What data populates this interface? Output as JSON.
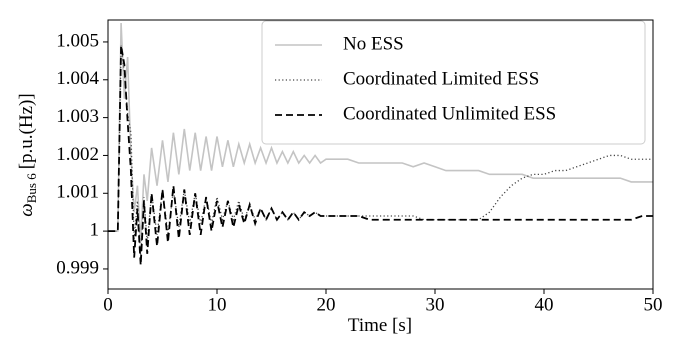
{
  "chart_data": {
    "type": "line",
    "x_label": "Time [s]",
    "y_label_symbol": "ω",
    "y_label_subscript": "Bus 6",
    "y_label_unit": "[p.u.(Hz)]",
    "legend": "upper right",
    "xlim": [
      0,
      50
    ],
    "xticks": [
      0,
      10,
      20,
      30,
      40,
      50
    ],
    "ylim": [
      0.99847,
      1.00558
    ],
    "yticks": [
      0.999,
      1,
      1.001,
      1.002,
      1.003,
      1.004,
      1.005
    ],
    "x": [
      0,
      0.9,
      1.2,
      1.5,
      1.8,
      2.1,
      2.4,
      2.7,
      3,
      3.3,
      3.6,
      4,
      4.5,
      5,
      5.5,
      6,
      6.5,
      7,
      7.5,
      8,
      8.5,
      9,
      9.5,
      10,
      10.5,
      11,
      11.5,
      12,
      12.5,
      13,
      13.5,
      14,
      14.5,
      15,
      15.5,
      16,
      16.5,
      17,
      17.5,
      18,
      18.5,
      19,
      19.5,
      20,
      21,
      22,
      23,
      24,
      25,
      26,
      27,
      28,
      29,
      30,
      31,
      32,
      33,
      34,
      35,
      36,
      37,
      38,
      39,
      40,
      41,
      42,
      43,
      44,
      45,
      46,
      47,
      48,
      49,
      50
    ],
    "series": [
      {
        "name": "No ESS",
        "color": "#c4c4c4",
        "dash": "solid",
        "values": [
          1,
          1,
          1.0055,
          1.0035,
          1.0046,
          1.002,
          1.0005,
          1.0012,
          0.9997,
          1.0015,
          1.0008,
          1.0022,
          1.0012,
          1.0024,
          1.0013,
          1.0026,
          1.0015,
          1.0027,
          1.0016,
          1.0026,
          1.0016,
          1.0025,
          1.0016,
          1.0025,
          1.0017,
          1.0024,
          1.0017,
          1.0023,
          1.0018,
          1.0023,
          1.0018,
          1.0022,
          1.0018,
          1.0022,
          1.0018,
          1.0021,
          1.0018,
          1.0021,
          1.0018,
          1.002,
          1.0018,
          1.002,
          1.0018,
          1.0019,
          1.0019,
          1.0019,
          1.0018,
          1.0018,
          1.0018,
          1.0018,
          1.0018,
          1.0017,
          1.0018,
          1.0017,
          1.0016,
          1.0016,
          1.0016,
          1.0016,
          1.0015,
          1.0015,
          1.0015,
          1.0015,
          1.0014,
          1.0014,
          1.0014,
          1.0014,
          1.0014,
          1.0014,
          1.0014,
          1.0014,
          1.0014,
          1.0013,
          1.0013,
          1.0013
        ]
      },
      {
        "name": "Coordinated Limited ESS",
        "color": "#444444",
        "dash": "dotted",
        "values": [
          1,
          1,
          1.0049,
          1.0042,
          1.0031,
          1.0026,
          0.9998,
          1.0008,
          0.9993,
          1.0009,
          0.9997,
          1.001,
          0.9999,
          1.0011,
          0.9999,
          1.0011,
          1.0001,
          1.0011,
          1.0002,
          1.001,
          1.0002,
          1.0009,
          1.0002,
          1.0009,
          1.0003,
          1.0008,
          1.0003,
          1.0008,
          1.0003,
          1.0007,
          1.0003,
          1.0006,
          1.0003,
          1.0006,
          1.0003,
          1.0005,
          1.0003,
          1.0005,
          1.0003,
          1.0005,
          1.0004,
          1.0005,
          1.0004,
          1.0004,
          1.0004,
          1.0004,
          1.0004,
          1.0004,
          1.0004,
          1.0004,
          1.0004,
          1.0004,
          1.0003,
          1.0003,
          1.0003,
          1.0003,
          1.0003,
          1.0003,
          1.0005,
          1.0009,
          1.0012,
          1.0014,
          1.0015,
          1.0015,
          1.0016,
          1.0016,
          1.0017,
          1.0018,
          1.0019,
          1.002,
          1.002,
          1.0019,
          1.0019,
          1.0019
        ]
      },
      {
        "name": "Coordinated Unlimited ESS",
        "color": "#000000",
        "dash": "dashed",
        "values": [
          1,
          1,
          1.0049,
          1.0044,
          1.0029,
          1.0016,
          0.9993,
          1.0006,
          0.9991,
          1.0008,
          0.9994,
          1.001,
          0.9996,
          1.0011,
          0.9997,
          1.0012,
          0.9998,
          1.0011,
          0.9999,
          1.001,
          0.9999,
          1.0009,
          1,
          1.0008,
          1.0001,
          1.0008,
          1.0001,
          1.0007,
          1.0002,
          1.0007,
          1.0002,
          1.0006,
          1.0003,
          1.0006,
          1.0003,
          1.0005,
          1.0003,
          1.0005,
          1.0003,
          1.0005,
          1.0004,
          1.0005,
          1.0004,
          1.0004,
          1.0004,
          1.0004,
          1.0004,
          1.0003,
          1.0003,
          1.0003,
          1.0003,
          1.0003,
          1.0003,
          1.0003,
          1.0003,
          1.0003,
          1.0003,
          1.0003,
          1.0003,
          1.0003,
          1.0003,
          1.0003,
          1.0003,
          1.0003,
          1.0003,
          1.0003,
          1.0003,
          1.0003,
          1.0003,
          1.0003,
          1.0003,
          1.0003,
          1.0004,
          1.0004
        ]
      }
    ]
  }
}
